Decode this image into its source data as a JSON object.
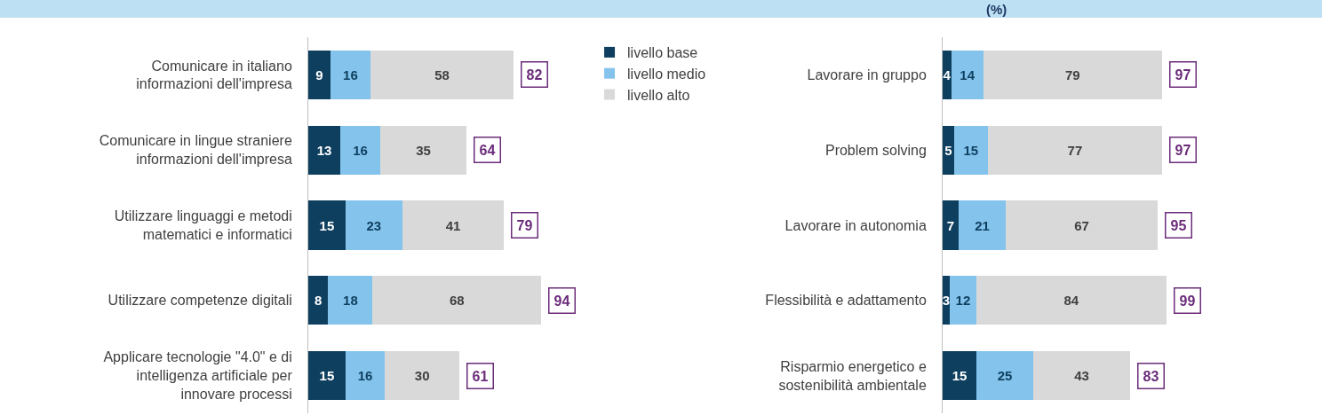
{
  "chart_data": [
    {
      "type": "bar",
      "orientation": "horizontal",
      "stacked": true,
      "data_labels": true,
      "legend": "right",
      "tick_labels": "y",
      "grid": false,
      "categories": [
        "Comunicare in italiano informazioni dell'impresa",
        "Comunicare in lingue straniere informazioni dell'impresa",
        "Utilizzare linguaggi e metodi matematici e informatici",
        "Utilizzare competenze digitali",
        "Applicare tecnologie \"4.0\" e di intelligenza artificiale per innovare processi"
      ],
      "series": [
        {
          "name": "livello base",
          "color": "#0f3f5f",
          "values": [
            9,
            13,
            15,
            8,
            15
          ]
        },
        {
          "name": "livello medio",
          "color": "#83c3ec",
          "values": [
            16,
            16,
            23,
            18,
            16
          ]
        },
        {
          "name": "livello alto",
          "color": "#d9d9d9",
          "values": [
            58,
            35,
            41,
            68,
            30
          ]
        }
      ],
      "totals": [
        "82",
        "64",
        "79",
        "94",
        "61"
      ]
    },
    {
      "type": "bar",
      "title": "(%)",
      "orientation": "horizontal",
      "stacked": true,
      "data_labels": true,
      "tick_labels": "y",
      "grid": false,
      "categories": [
        "Lavorare in gruppo",
        "Problem solving",
        "Lavorare in autonomia",
        "Flessibilità e adattamento",
        "Risparmio energetico e sostenibilità ambientale"
      ],
      "series": [
        {
          "color": "#0f3f5f",
          "values": [
            4,
            5,
            7,
            3,
            15
          ]
        },
        {
          "color": "#83c3ec",
          "values": [
            14,
            15,
            21,
            12,
            25
          ]
        },
        {
          "color": "#d9d9d9",
          "values": [
            79,
            77,
            67,
            84,
            43
          ]
        }
      ],
      "totals": [
        "97",
        "97",
        "95",
        "99",
        "83"
      ]
    }
  ]
}
